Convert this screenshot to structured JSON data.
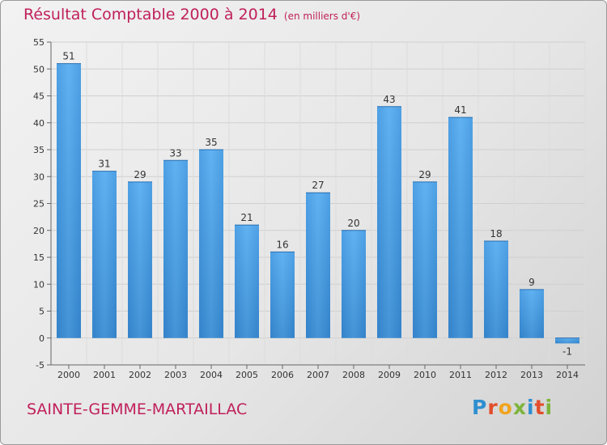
{
  "header": {
    "title": "Résultat Comptable 2000 à 2014",
    "subtitle": "(en milliers d'€)"
  },
  "footer": {
    "city": "SAINTE-GEMME-MARTAILLAC",
    "logo_letters": [
      "P",
      "r",
      "o",
      "x",
      "i",
      "t",
      "i"
    ]
  },
  "chart_data": {
    "type": "bar",
    "title": "Résultat Comptable 2000 à 2014",
    "subtitle": "(en milliers d'€)",
    "xlabel": "",
    "ylabel": "",
    "categories": [
      "2000",
      "2001",
      "2002",
      "2003",
      "2004",
      "2005",
      "2006",
      "2007",
      "2008",
      "2009",
      "2010",
      "2011",
      "2012",
      "2013",
      "2014"
    ],
    "values": [
      51,
      31,
      29,
      33,
      35,
      21,
      16,
      27,
      20,
      43,
      29,
      41,
      18,
      9,
      -1
    ],
    "ylim": [
      -5,
      55
    ],
    "yticks": [
      -5,
      0,
      5,
      10,
      15,
      20,
      25,
      30,
      35,
      40,
      45,
      50,
      55
    ],
    "grid": true,
    "bar_color": "#4a9ee0",
    "bar_color_dark": "#2a78c0"
  }
}
